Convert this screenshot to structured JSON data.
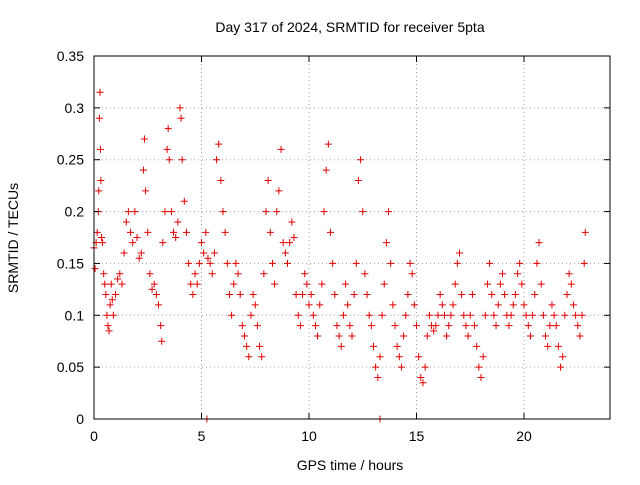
{
  "chart_data": {
    "type": "scatter",
    "title": "Day 317 of 2024, SRMTID for receiver 5pta",
    "xlabel": "GPS time / hours",
    "ylabel": "SRMTID / TECUs",
    "xlim": [
      0,
      24
    ],
    "ylim": [
      0,
      0.35
    ],
    "x_ticks": [
      0,
      5,
      10,
      15,
      20
    ],
    "y_ticks": [
      0,
      0.05,
      0.1,
      0.15,
      0.2,
      0.25,
      0.3,
      0.35
    ],
    "x_tick_labels": [
      "0",
      "5",
      "10",
      "15",
      "20"
    ],
    "y_tick_labels": [
      "0",
      "0.05",
      "0.1",
      "0.15",
      "0.2",
      "0.25",
      "0.3",
      "0.35"
    ],
    "grid": true,
    "marker": "+",
    "color": "#e00000",
    "series": [
      {
        "name": "SRMTID",
        "points": [
          [
            0.0,
            0.165
          ],
          [
            0.05,
            0.145
          ],
          [
            0.1,
            0.17
          ],
          [
            0.15,
            0.18
          ],
          [
            0.2,
            0.2
          ],
          [
            0.22,
            0.22
          ],
          [
            0.25,
            0.29
          ],
          [
            0.28,
            0.315
          ],
          [
            0.3,
            0.26
          ],
          [
            0.32,
            0.23
          ],
          [
            0.35,
            0.175
          ],
          [
            0.4,
            0.17
          ],
          [
            0.45,
            0.14
          ],
          [
            0.5,
            0.13
          ],
          [
            0.55,
            0.12
          ],
          [
            0.6,
            0.1
          ],
          [
            0.65,
            0.09
          ],
          [
            0.7,
            0.085
          ],
          [
            0.75,
            0.11
          ],
          [
            0.8,
            0.13
          ],
          [
            0.85,
            0.115
          ],
          [
            0.9,
            0.1
          ],
          [
            1.0,
            0.12
          ],
          [
            1.1,
            0.135
          ],
          [
            1.2,
            0.14
          ],
          [
            1.3,
            0.13
          ],
          [
            1.4,
            0.16
          ],
          [
            1.5,
            0.19
          ],
          [
            1.6,
            0.2
          ],
          [
            1.7,
            0.18
          ],
          [
            1.8,
            0.17
          ],
          [
            1.9,
            0.2
          ],
          [
            2.0,
            0.175
          ],
          [
            2.1,
            0.155
          ],
          [
            2.2,
            0.16
          ],
          [
            2.3,
            0.24
          ],
          [
            2.35,
            0.27
          ],
          [
            2.4,
            0.22
          ],
          [
            2.5,
            0.18
          ],
          [
            2.6,
            0.14
          ],
          [
            2.7,
            0.125
          ],
          [
            2.8,
            0.13
          ],
          [
            2.9,
            0.12
          ],
          [
            3.0,
            0.11
          ],
          [
            3.1,
            0.09
          ],
          [
            3.15,
            0.075
          ],
          [
            3.2,
            0.17
          ],
          [
            3.3,
            0.2
          ],
          [
            3.4,
            0.26
          ],
          [
            3.45,
            0.28
          ],
          [
            3.5,
            0.25
          ],
          [
            3.6,
            0.2
          ],
          [
            3.7,
            0.18
          ],
          [
            3.8,
            0.175
          ],
          [
            3.9,
            0.19
          ],
          [
            4.0,
            0.3
          ],
          [
            4.05,
            0.29
          ],
          [
            4.1,
            0.25
          ],
          [
            4.2,
            0.21
          ],
          [
            4.3,
            0.18
          ],
          [
            4.4,
            0.15
          ],
          [
            4.5,
            0.13
          ],
          [
            4.6,
            0.12
          ],
          [
            4.7,
            0.14
          ],
          [
            4.8,
            0.13
          ],
          [
            4.9,
            0.15
          ],
          [
            5.0,
            0.17
          ],
          [
            5.1,
            0.16
          ],
          [
            5.2,
            0.18
          ],
          [
            5.3,
            0.155
          ],
          [
            5.4,
            0.15
          ],
          [
            5.5,
            0.14
          ],
          [
            5.6,
            0.16
          ],
          [
            5.7,
            0.25
          ],
          [
            5.8,
            0.265
          ],
          [
            5.9,
            0.23
          ],
          [
            6.0,
            0.2
          ],
          [
            6.1,
            0.18
          ],
          [
            6.2,
            0.15
          ],
          [
            6.3,
            0.12
          ],
          [
            6.4,
            0.1
          ],
          [
            6.5,
            0.13
          ],
          [
            6.6,
            0.15
          ],
          [
            6.7,
            0.14
          ],
          [
            6.8,
            0.12
          ],
          [
            6.9,
            0.09
          ],
          [
            7.0,
            0.08
          ],
          [
            7.1,
            0.07
          ],
          [
            7.2,
            0.06
          ],
          [
            7.3,
            0.1
          ],
          [
            7.4,
            0.12
          ],
          [
            7.5,
            0.11
          ],
          [
            7.6,
            0.09
          ],
          [
            7.7,
            0.07
          ],
          [
            7.8,
            0.06
          ],
          [
            7.9,
            0.14
          ],
          [
            8.0,
            0.2
          ],
          [
            8.1,
            0.23
          ],
          [
            8.2,
            0.18
          ],
          [
            8.3,
            0.15
          ],
          [
            8.4,
            0.13
          ],
          [
            8.5,
            0.2
          ],
          [
            8.6,
            0.22
          ],
          [
            8.7,
            0.26
          ],
          [
            8.8,
            0.17
          ],
          [
            8.9,
            0.16
          ],
          [
            9.0,
            0.15
          ],
          [
            9.1,
            0.17
          ],
          [
            9.2,
            0.19
          ],
          [
            9.3,
            0.175
          ],
          [
            9.4,
            0.12
          ],
          [
            9.5,
            0.1
          ],
          [
            9.6,
            0.09
          ],
          [
            9.7,
            0.12
          ],
          [
            9.8,
            0.14
          ],
          [
            9.9,
            0.13
          ],
          [
            10.0,
            0.11
          ],
          [
            10.1,
            0.12
          ],
          [
            10.2,
            0.1
          ],
          [
            10.3,
            0.09
          ],
          [
            10.4,
            0.08
          ],
          [
            10.5,
            0.11
          ],
          [
            10.6,
            0.13
          ],
          [
            10.7,
            0.2
          ],
          [
            10.8,
            0.24
          ],
          [
            10.9,
            0.265
          ],
          [
            11.0,
            0.18
          ],
          [
            11.1,
            0.15
          ],
          [
            11.2,
            0.12
          ],
          [
            11.3,
            0.09
          ],
          [
            11.4,
            0.08
          ],
          [
            11.5,
            0.07
          ],
          [
            11.6,
            0.1
          ],
          [
            11.7,
            0.13
          ],
          [
            11.8,
            0.11
          ],
          [
            11.9,
            0.09
          ],
          [
            12.0,
            0.08
          ],
          [
            12.1,
            0.12
          ],
          [
            12.2,
            0.15
          ],
          [
            12.3,
            0.23
          ],
          [
            12.4,
            0.25
          ],
          [
            12.5,
            0.2
          ],
          [
            12.6,
            0.14
          ],
          [
            12.7,
            0.12
          ],
          [
            12.8,
            0.1
          ],
          [
            12.9,
            0.09
          ],
          [
            13.0,
            0.07
          ],
          [
            13.1,
            0.05
          ],
          [
            13.2,
            0.04
          ],
          [
            13.3,
            0.06
          ],
          [
            13.4,
            0.1
          ],
          [
            13.5,
            0.13
          ],
          [
            13.6,
            0.17
          ],
          [
            13.7,
            0.2
          ],
          [
            13.8,
            0.15
          ],
          [
            13.9,
            0.11
          ],
          [
            14.0,
            0.09
          ],
          [
            14.1,
            0.07
          ],
          [
            14.2,
            0.06
          ],
          [
            14.3,
            0.05
          ],
          [
            14.4,
            0.08
          ],
          [
            14.5,
            0.1
          ],
          [
            14.6,
            0.12
          ],
          [
            14.7,
            0.15
          ],
          [
            14.8,
            0.14
          ],
          [
            14.9,
            0.11
          ],
          [
            15.0,
            0.09
          ],
          [
            15.1,
            0.06
          ],
          [
            15.2,
            0.04
          ],
          [
            15.3,
            0.035
          ],
          [
            15.4,
            0.05
          ],
          [
            15.5,
            0.08
          ],
          [
            15.6,
            0.1
          ],
          [
            15.7,
            0.09
          ],
          [
            15.8,
            0.085
          ],
          [
            15.9,
            0.09
          ],
          [
            16.0,
            0.1
          ],
          [
            16.1,
            0.12
          ],
          [
            16.2,
            0.11
          ],
          [
            16.3,
            0.1
          ],
          [
            16.4,
            0.08
          ],
          [
            16.5,
            0.09
          ],
          [
            16.6,
            0.1
          ],
          [
            16.7,
            0.11
          ],
          [
            16.8,
            0.13
          ],
          [
            16.9,
            0.15
          ],
          [
            17.0,
            0.16
          ],
          [
            17.1,
            0.12
          ],
          [
            17.2,
            0.1
          ],
          [
            17.3,
            0.09
          ],
          [
            17.4,
            0.08
          ],
          [
            17.5,
            0.1
          ],
          [
            17.6,
            0.12
          ],
          [
            17.7,
            0.09
          ],
          [
            17.8,
            0.07
          ],
          [
            17.9,
            0.05
          ],
          [
            18.0,
            0.04
          ],
          [
            18.1,
            0.06
          ],
          [
            18.2,
            0.1
          ],
          [
            18.3,
            0.13
          ],
          [
            18.4,
            0.15
          ],
          [
            18.5,
            0.12
          ],
          [
            18.6,
            0.1
          ],
          [
            18.7,
            0.09
          ],
          [
            18.8,
            0.11
          ],
          [
            18.9,
            0.13
          ],
          [
            19.0,
            0.14
          ],
          [
            19.1,
            0.12
          ],
          [
            19.2,
            0.1
          ],
          [
            19.3,
            0.09
          ],
          [
            19.4,
            0.1
          ],
          [
            19.5,
            0.11
          ],
          [
            19.6,
            0.12
          ],
          [
            19.7,
            0.14
          ],
          [
            19.8,
            0.15
          ],
          [
            19.9,
            0.13
          ],
          [
            20.0,
            0.11
          ],
          [
            20.1,
            0.1
          ],
          [
            20.2,
            0.09
          ],
          [
            20.3,
            0.08
          ],
          [
            20.4,
            0.1
          ],
          [
            20.5,
            0.12
          ],
          [
            20.6,
            0.15
          ],
          [
            20.7,
            0.17
          ],
          [
            20.8,
            0.13
          ],
          [
            20.9,
            0.1
          ],
          [
            21.0,
            0.08
          ],
          [
            21.1,
            0.07
          ],
          [
            21.2,
            0.09
          ],
          [
            21.3,
            0.11
          ],
          [
            21.4,
            0.1
          ],
          [
            21.5,
            0.09
          ],
          [
            21.6,
            0.07
          ],
          [
            21.7,
            0.05
          ],
          [
            21.8,
            0.06
          ],
          [
            21.9,
            0.1
          ],
          [
            22.0,
            0.12
          ],
          [
            22.1,
            0.14
          ],
          [
            22.2,
            0.13
          ],
          [
            22.3,
            0.11
          ],
          [
            22.4,
            0.1
          ],
          [
            22.5,
            0.09
          ],
          [
            22.6,
            0.08
          ],
          [
            22.7,
            0.1
          ],
          [
            22.8,
            0.15
          ],
          [
            22.85,
            0.18
          ],
          [
            5.25,
            0.0
          ],
          [
            13.3,
            0.0
          ]
        ]
      }
    ]
  }
}
